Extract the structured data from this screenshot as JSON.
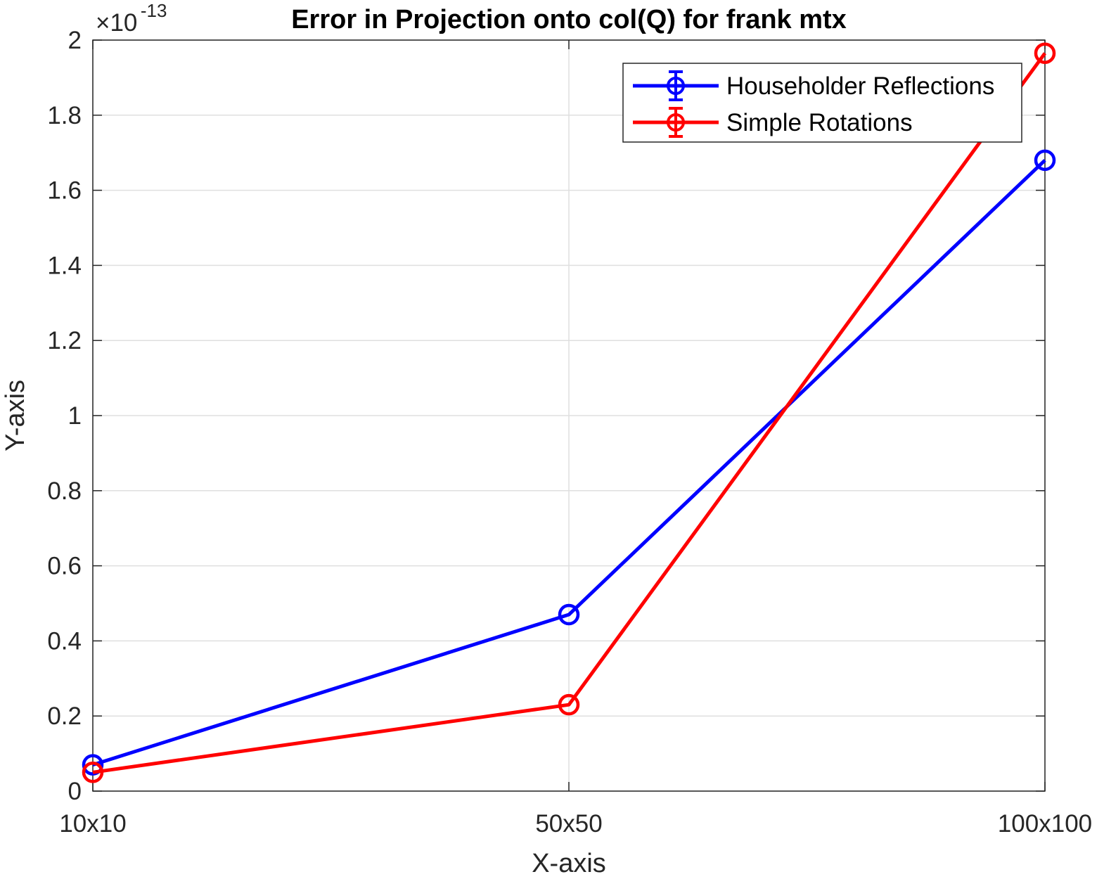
{
  "chart_data": {
    "type": "line",
    "title": "Error in Projection onto col(Q) for frank mtx",
    "xlabel": "X-axis",
    "ylabel": "Y-axis",
    "categories": [
      "10x10",
      "50x50",
      "100x100"
    ],
    "y_exponent": {
      "base": "×10",
      "power": "-13"
    },
    "ylim": [
      0,
      2
    ],
    "yticks": [
      0,
      0.2,
      0.4,
      0.6,
      0.8,
      1,
      1.2,
      1.4,
      1.6,
      1.8,
      2
    ],
    "ytick_labels": [
      "0",
      "0.2",
      "0.4",
      "0.6",
      "0.8",
      "1",
      "1.2",
      "1.4",
      "1.6",
      "1.8",
      "2"
    ],
    "grid": true,
    "legend_position": "top-right",
    "series": [
      {
        "name": "Householder Reflections",
        "color": "#0000ff",
        "values": [
          0.07,
          0.47,
          1.68
        ]
      },
      {
        "name": "Simple Rotations",
        "color": "#ff0000",
        "values": [
          0.05,
          0.23,
          1.965
        ]
      }
    ]
  }
}
